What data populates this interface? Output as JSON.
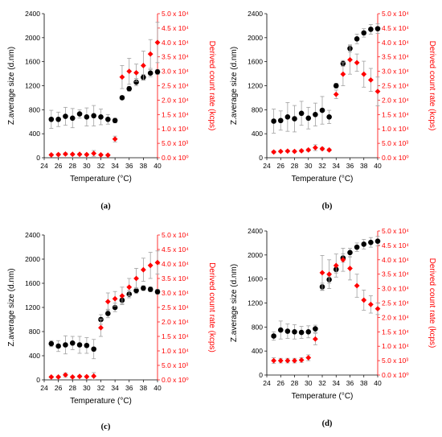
{
  "colors": {
    "left_series": "#000000",
    "right_series": "#ff0000",
    "error_bar": "#a0a0a0",
    "right_axis": "#ff0000"
  },
  "chart_data": [
    {
      "type": "scatter",
      "panel_label": "(a)",
      "xlabel": "Temperature (°C)",
      "ylabel": "Z.average size (d.nm)",
      "y2label": "Derived count rate (kcps)",
      "xlim": [
        24,
        40
      ],
      "ylim": [
        0,
        2400
      ],
      "y2lim": [
        0,
        50000
      ],
      "xticks": [
        24,
        26,
        28,
        30,
        32,
        34,
        36,
        38,
        40
      ],
      "xtick_labels": [
        "24",
        "26",
        "28",
        "30",
        "32",
        "34",
        "36",
        "38",
        "40"
      ],
      "yticks": [
        0,
        400,
        800,
        1200,
        1600,
        2000,
        2400
      ],
      "ytick_labels": [
        "0",
        "400",
        "800",
        "1200",
        "1600",
        "2000",
        "2400"
      ],
      "y2ticks": [
        0,
        5000,
        10000,
        15000,
        20000,
        25000,
        30000,
        35000,
        40000,
        45000,
        50000
      ],
      "y2tick_labels": [
        "0.0 x 10⁰",
        "5.0 x 10³",
        "1.0 x 10⁴",
        "1.5 x 10⁴",
        "2.0 x 10⁴",
        "2.5 x 10⁴",
        "3.0 x 10⁴",
        "3.5 x 10⁴",
        "4.0 x 10⁴",
        "4.5 x 10⁴",
        "5.0 x 10⁴"
      ],
      "series": [
        {
          "axis": "left",
          "marker": "circle",
          "x": [
            25,
            26,
            27,
            28,
            29,
            30,
            31,
            32,
            33,
            34,
            35,
            36,
            37,
            38,
            39,
            40
          ],
          "y": [
            640,
            640,
            690,
            660,
            730,
            680,
            700,
            680,
            640,
            620,
            1000,
            1150,
            1260,
            1340,
            1410,
            1430
          ],
          "err": [
            150,
            120,
            150,
            160,
            70,
            150,
            170,
            130,
            80,
            40,
            30,
            40,
            60,
            50,
            60,
            40
          ]
        },
        {
          "axis": "right",
          "marker": "diamond",
          "x": [
            25,
            26,
            27,
            28,
            29,
            30,
            31,
            32,
            33,
            34,
            35,
            36,
            37,
            38,
            39,
            40
          ],
          "y": [
            1000,
            1100,
            1300,
            1200,
            1200,
            1100,
            1500,
            1000,
            900,
            6500,
            28000,
            30000,
            29500,
            32000,
            36000,
            40000
          ],
          "err": [
            300,
            300,
            400,
            300,
            300,
            300,
            1000,
            300,
            300,
            1000,
            4000,
            4500,
            3000,
            5000,
            5000,
            7000
          ]
        }
      ]
    },
    {
      "type": "scatter",
      "panel_label": "(b)",
      "xlabel": "Temperature (°C)",
      "ylabel": "Z.average size (d.nm)",
      "y2label": "Derived count rate (kcps)",
      "xlim": [
        24,
        40
      ],
      "ylim": [
        0,
        2400
      ],
      "y2lim": [
        0,
        50000
      ],
      "xticks": [
        24,
        26,
        28,
        30,
        32,
        34,
        36,
        38,
        40
      ],
      "xtick_labels": [
        "24",
        "26",
        "28",
        "30",
        "32",
        "34",
        "36",
        "38",
        "40"
      ],
      "yticks": [
        0,
        400,
        800,
        1200,
        1600,
        2000,
        2400
      ],
      "ytick_labels": [
        "0",
        "400",
        "800",
        "1200",
        "1600",
        "2000",
        "2400"
      ],
      "y2ticks": [
        0,
        5000,
        10000,
        15000,
        20000,
        25000,
        30000,
        35000,
        40000,
        45000,
        50000
      ],
      "y2tick_labels": [
        "0.0 x 10⁰",
        "5.0 x 10³",
        "1.0 x 10⁴",
        "1.5 x 10⁴",
        "2.0 x 10⁴",
        "2.5 x 10⁴",
        "3.0 x 10⁴",
        "3.5 x 10⁴",
        "4.0 x 10⁴",
        "4.5 x 10⁴",
        "5.0 x 10⁴"
      ],
      "series": [
        {
          "axis": "left",
          "marker": "circle",
          "x": [
            25,
            26,
            27,
            28,
            29,
            30,
            31,
            32,
            33,
            34,
            35,
            36,
            37,
            38,
            39,
            40
          ],
          "y": [
            610,
            620,
            680,
            650,
            740,
            660,
            720,
            790,
            680,
            1200,
            1570,
            1820,
            1980,
            2080,
            2140,
            2150
          ],
          "err": [
            200,
            160,
            240,
            220,
            200,
            180,
            190,
            230,
            110,
            40,
            50,
            60,
            80,
            70,
            80,
            80
          ]
        },
        {
          "axis": "right",
          "marker": "diamond",
          "x": [
            25,
            26,
            27,
            28,
            29,
            30,
            31,
            32,
            33,
            34,
            35,
            36,
            37,
            38,
            39,
            40
          ],
          "y": [
            2000,
            2200,
            2300,
            2200,
            2400,
            2700,
            3500,
            3100,
            2700,
            22000,
            29000,
            34000,
            33000,
            29000,
            27000,
            23000
          ],
          "err": [
            400,
            300,
            300,
            300,
            400,
            400,
            1000,
            500,
            400,
            1500,
            4000,
            5000,
            3000,
            4500,
            4000,
            5000
          ]
        }
      ]
    },
    {
      "type": "scatter",
      "panel_label": "(c)",
      "xlabel": "Temperature (°C)",
      "ylabel": "Z.average size (d.nm)",
      "y2label": "Derived count rate (kcps)",
      "xlim": [
        24,
        40
      ],
      "ylim": [
        0,
        2400
      ],
      "y2lim": [
        0,
        50000
      ],
      "xticks": [
        24,
        26,
        28,
        30,
        32,
        34,
        36,
        38,
        40
      ],
      "xtick_labels": [
        "24",
        "26",
        "28",
        "30",
        "32",
        "34",
        "36",
        "38",
        "40"
      ],
      "yticks": [
        0,
        400,
        800,
        1200,
        1600,
        2000,
        2400
      ],
      "ytick_labels": [
        "0",
        "400",
        "800",
        "1200",
        "1600",
        "2000",
        "2400"
      ],
      "y2ticks": [
        0,
        5000,
        10000,
        15000,
        20000,
        25000,
        30000,
        35000,
        40000,
        45000,
        50000
      ],
      "y2tick_labels": [
        "0.0 x 10⁰",
        "5.0 x 10³",
        "1.0 x 10⁴",
        "1.5 x 10⁴",
        "2.0 x 10⁴",
        "2.5 x 10⁴",
        "3.0 x 10⁴",
        "3.5 x 10⁴",
        "4.0 x 10⁴",
        "4.5 x 10⁴",
        "5.0 x 10⁴"
      ],
      "series": [
        {
          "axis": "left",
          "marker": "circle",
          "x": [
            25,
            26,
            27,
            28,
            29,
            30,
            31,
            32,
            33,
            34,
            35,
            36,
            37,
            38,
            39,
            40
          ],
          "y": [
            600,
            560,
            580,
            610,
            580,
            570,
            510,
            1000,
            1100,
            1200,
            1320,
            1420,
            1480,
            1520,
            1500,
            1460
          ],
          "err": [
            50,
            90,
            150,
            110,
            140,
            130,
            160,
            80,
            70,
            70,
            60,
            60,
            50,
            40,
            40,
            40
          ]
        },
        {
          "axis": "right",
          "marker": "diamond",
          "x": [
            25,
            26,
            27,
            28,
            29,
            30,
            31,
            32,
            33,
            34,
            35,
            36,
            37,
            38,
            39,
            40
          ],
          "y": [
            1000,
            1000,
            1700,
            1000,
            1200,
            1100,
            1300,
            18000,
            27000,
            28000,
            29000,
            32000,
            35000,
            38000,
            39500,
            40500
          ],
          "err": [
            300,
            300,
            700,
            300,
            300,
            300,
            1200,
            3000,
            3000,
            2500,
            3000,
            3000,
            3500,
            4000,
            4500,
            4000
          ]
        }
      ]
    },
    {
      "type": "scatter",
      "panel_label": "(d)",
      "xlabel": "Temperature (°C)",
      "ylabel": "Z.average size (d.nm)",
      "y2label": "Derived count rate (kcps)",
      "xlim": [
        24,
        40
      ],
      "ylim": [
        0,
        2400
      ],
      "y2lim": [
        0,
        50000
      ],
      "xticks": [
        24,
        26,
        28,
        30,
        32,
        34,
        36,
        38,
        40
      ],
      "xtick_labels": [
        "24",
        "26",
        "28",
        "30",
        "32",
        "34",
        "36",
        "38",
        "40"
      ],
      "yticks": [
        0,
        400,
        800,
        1200,
        1600,
        2000,
        2400
      ],
      "ytick_labels": [
        "0",
        "400",
        "800",
        "1200",
        "1600",
        "2000",
        "2400"
      ],
      "y2ticks": [
        0,
        5000,
        10000,
        15000,
        20000,
        25000,
        30000,
        35000,
        40000,
        45000,
        50000
      ],
      "y2tick_labels": [
        "0.0 x 10⁰",
        "5.0 x 10³",
        "1.0 x 10⁴",
        "1.5 x 10⁴",
        "2.0 x 10⁴",
        "2.5 x 10⁴",
        "3.0 x 10⁴",
        "3.5 x 10⁴",
        "4.0 x 10⁴",
        "4.5 x 10⁴",
        "5.0 x 10⁴"
      ],
      "series": [
        {
          "axis": "left",
          "marker": "circle",
          "x": [
            25,
            26,
            27,
            28,
            29,
            30,
            31,
            32,
            33,
            34,
            35,
            36,
            37,
            38,
            39,
            40
          ],
          "y": [
            650,
            750,
            730,
            720,
            710,
            720,
            770,
            1470,
            1590,
            1760,
            1950,
            2040,
            2130,
            2180,
            2210,
            2230
          ],
          "err": [
            70,
            150,
            120,
            120,
            100,
            100,
            60,
            60,
            60,
            60,
            70,
            70,
            70,
            80,
            80,
            80
          ]
        },
        {
          "axis": "right",
          "marker": "diamond",
          "x": [
            25,
            26,
            27,
            28,
            29,
            30,
            31,
            32,
            33,
            34,
            35,
            36,
            37,
            38,
            39,
            40
          ],
          "y": [
            5000,
            5000,
            5000,
            5000,
            5200,
            6000,
            12500,
            35500,
            35000,
            38000,
            40000,
            37000,
            31000,
            26000,
            24500,
            23000
          ],
          "err": [
            1000,
            800,
            800,
            800,
            800,
            1000,
            2000,
            6000,
            5000,
            4000,
            4000,
            4000,
            4000,
            3500,
            3000,
            2000
          ]
        }
      ]
    }
  ]
}
